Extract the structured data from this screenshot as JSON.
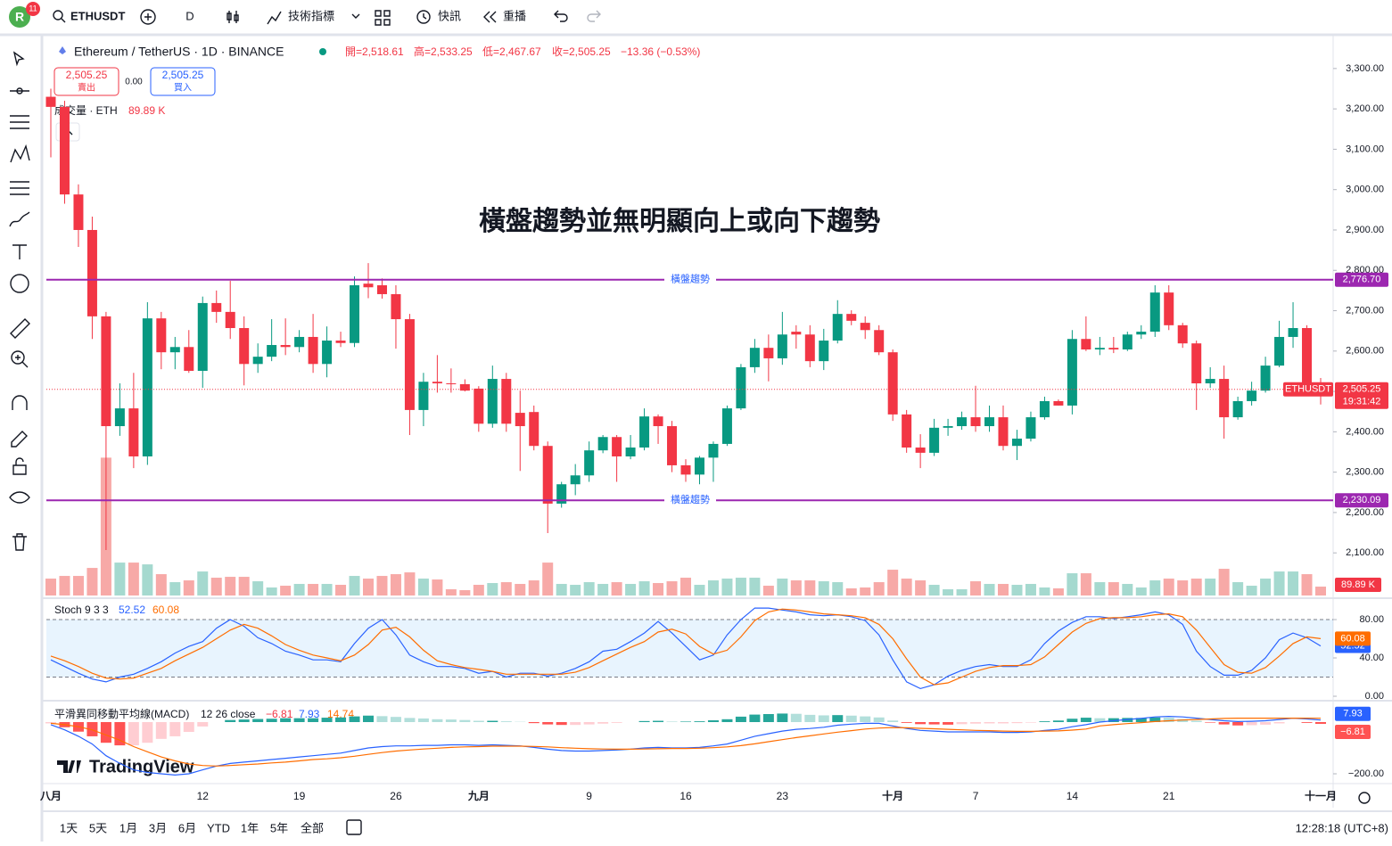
{
  "toolbar": {
    "avatar": "R",
    "badge": "11",
    "symbol": "ETHUSDT",
    "interval": "D",
    "indicators": "技術指標",
    "alerts": "快訊",
    "replay": "重播"
  },
  "legend": {
    "title": "Ethereum / TetherUS · 1D · BINANCE",
    "open": "開=2,518.61",
    "high": "高=2,533.25",
    "low": "低=2,467.67",
    "close": "收=2,505.25",
    "change": "−13.36 (−0.53%)"
  },
  "trade": {
    "sell_price": "2,505.25",
    "sell": "賣出",
    "spread": "0.00",
    "buy_price": "2,505.25",
    "buy": "買入"
  },
  "brand": "TradingView",
  "chart_data": [
    {
      "type": "candlestick",
      "annotation": "橫盤趨勢並無明顯向上或向下趨勢",
      "categories": [
        "八月",
        null,
        null,
        null,
        null,
        null,
        null,
        null,
        null,
        null,
        null,
        "12",
        null,
        null,
        null,
        null,
        null,
        null,
        "19",
        null,
        null,
        null,
        null,
        null,
        null,
        "26",
        null,
        null,
        null,
        null,
        null,
        "九月",
        null,
        null,
        null,
        null,
        null,
        null,
        null,
        "9",
        null,
        null,
        null,
        null,
        null,
        null,
        "16",
        null,
        null,
        null,
        null,
        null,
        null,
        "23",
        null,
        null,
        null,
        null,
        null,
        null,
        null,
        "十月",
        null,
        null,
        null,
        null,
        null,
        "7",
        null,
        null,
        null,
        null,
        null,
        null,
        "14",
        null,
        null,
        null,
        null,
        null,
        null,
        "21",
        null,
        null,
        null,
        null,
        null,
        null,
        null,
        null,
        null,
        null,
        "十一月"
      ],
      "open": [
        3230,
        3205,
        2988,
        2900,
        2686,
        2414,
        2458,
        2339,
        2681,
        2597,
        2610,
        2551,
        2719,
        2697,
        2657,
        2568,
        2586,
        2615,
        2610,
        2635,
        2568,
        2626,
        2620,
        2767,
        2763,
        2741,
        2679,
        2454,
        2524,
        2520,
        2518,
        2507,
        2420,
        2531,
        2447,
        2449,
        2365,
        2222,
        2270,
        2292,
        2354,
        2387,
        2339,
        2361,
        2438,
        2414,
        2317,
        2294,
        2336,
        2370,
        2458,
        2560,
        2608,
        2582,
        2648,
        2641,
        2575,
        2626,
        2692,
        2670,
        2652,
        2597,
        2443,
        2361,
        2348,
        2410,
        2414,
        2436,
        2414,
        2436,
        2365,
        2383,
        2436,
        2476,
        2465,
        2630,
        2604,
        2608,
        2604,
        2641,
        2648,
        2745,
        2664,
        2619,
        2520,
        2531,
        2436,
        2476,
        2502,
        2564,
        2635,
        2657,
        2518.61
      ],
      "high": [
        3250,
        3220,
        3013,
        2933,
        2697,
        2520,
        2546,
        2721,
        2697,
        2635,
        2652,
        2735,
        2750,
        2774,
        2686,
        2619,
        2679,
        2681,
        2652,
        2692,
        2661,
        2648,
        2785,
        2818,
        2780,
        2763,
        2692,
        2546,
        2590,
        2557,
        2530,
        2513,
        2564,
        2546,
        2502,
        2465,
        2376,
        2276,
        2320,
        2376,
        2392,
        2392,
        2392,
        2458,
        2443,
        2427,
        2332,
        2340,
        2376,
        2465,
        2568,
        2630,
        2641,
        2697,
        2664,
        2664,
        2655,
        2726,
        2701,
        2686,
        2664,
        2604,
        2454,
        2394,
        2432,
        2432,
        2450,
        2514,
        2465,
        2465,
        2405,
        2450,
        2487,
        2480,
        2652,
        2686,
        2635,
        2635,
        2648,
        2664,
        2763,
        2763,
        2670,
        2626,
        2560,
        2564,
        2487,
        2524,
        2586,
        2675,
        2721,
        2664,
        2533.25
      ],
      "low": [
        3080,
        2965,
        2858,
        2630,
        2107,
        2390,
        2310,
        2318,
        2555,
        2555,
        2546,
        2509,
        2670,
        2630,
        2515,
        2546,
        2575,
        2590,
        2597,
        2546,
        2535,
        2610,
        2610,
        2731,
        2730,
        2606,
        2392,
        2414,
        2497,
        2497,
        2500,
        2400,
        2410,
        2400,
        2303,
        2354,
        2149,
        2212,
        2243,
        2276,
        2347,
        2276,
        2332,
        2354,
        2370,
        2300,
        2276,
        2270,
        2276,
        2365,
        2454,
        2546,
        2525,
        2566,
        2606,
        2560,
        2553,
        2619,
        2664,
        2630,
        2590,
        2427,
        2348,
        2310,
        2340,
        2390,
        2405,
        2400,
        2400,
        2354,
        2330,
        2376,
        2430,
        2465,
        2443,
        2600,
        2590,
        2595,
        2600,
        2630,
        2635,
        2652,
        2608,
        2454,
        2509,
        2383,
        2430,
        2465,
        2497,
        2560,
        2608,
        2500,
        2467.67
      ],
      "close": [
        3205,
        2988,
        2900,
        2686,
        2414,
        2458,
        2339,
        2681,
        2597,
        2610,
        2551,
        2719,
        2697,
        2657,
        2568,
        2586,
        2615,
        2610,
        2635,
        2568,
        2626,
        2620,
        2763,
        2758,
        2741,
        2679,
        2454,
        2524,
        2520,
        2518,
        2502,
        2420,
        2531,
        2420,
        2414,
        2365,
        2222,
        2270,
        2292,
        2354,
        2387,
        2339,
        2361,
        2438,
        2414,
        2317,
        2294,
        2336,
        2370,
        2458,
        2560,
        2608,
        2582,
        2641,
        2641,
        2575,
        2626,
        2692,
        2675,
        2652,
        2597,
        2443,
        2361,
        2348,
        2410,
        2414,
        2436,
        2414,
        2436,
        2365,
        2383,
        2436,
        2476,
        2465,
        2630,
        2604,
        2608,
        2604,
        2641,
        2648,
        2745,
        2664,
        2619,
        2520,
        2531,
        2436,
        2476,
        2502,
        2564,
        2635,
        2657,
        2515,
        2505.25
      ],
      "up_color": "#089981",
      "down_color": "#f23645",
      "ylim": [
        1990,
        3377
      ],
      "yticks": [
        {
          "value": 2100,
          "label": "2,100.00"
        },
        {
          "value": 2200,
          "label": "2,200.00"
        },
        {
          "value": 2300,
          "label": "2,300.00"
        },
        {
          "value": 2400,
          "label": "2,400.00"
        },
        {
          "value": 2500,
          "label": "2,500.00"
        },
        {
          "value": 2600,
          "label": "2,600.00"
        },
        {
          "value": 2700,
          "label": "2,700.00"
        },
        {
          "value": 2800,
          "label": "2,800.00"
        },
        {
          "value": 2900,
          "label": "2,900.00"
        },
        {
          "value": 3000,
          "label": "3,000.00"
        },
        {
          "value": 3100,
          "label": "3,100.00"
        },
        {
          "value": 3200,
          "label": "3,200.00"
        },
        {
          "value": 3300,
          "label": "3,300.00"
        }
      ],
      "volume": {
        "name": "成交量 · ETH",
        "last_label": "89.89 K",
        "vlim": [
          0,
          5647
        ],
        "up_color": "#a5d9cf",
        "down_color": "#f7a9a7",
        "values": [
          171,
          198,
          198,
          279,
          1395,
          333,
          333,
          315,
          216,
          135,
          153,
          243,
          180,
          189,
          189,
          144,
          81,
          99,
          117,
          117,
          117,
          108,
          198,
          171,
          198,
          216,
          234,
          171,
          162,
          63,
          54,
          108,
          126,
          135,
          117,
          153,
          333,
          117,
          108,
          135,
          117,
          135,
          117,
          144,
          126,
          144,
          180,
          108,
          153,
          171,
          180,
          180,
          99,
          171,
          153,
          153,
          144,
          135,
          72,
          81,
          135,
          261,
          171,
          153,
          108,
          63,
          63,
          144,
          117,
          117,
          108,
          117,
          81,
          72,
          225,
          225,
          135,
          135,
          117,
          81,
          153,
          171,
          153,
          171,
          171,
          270,
          135,
          99,
          171,
          243,
          243,
          216,
          89.89
        ]
      },
      "hlines": [
        {
          "value": 2776.7,
          "label": "2,776.70",
          "text": "橫盤趨勢"
        },
        {
          "value": 2230.09,
          "label": "2,230.09",
          "text": "橫盤趨勢"
        }
      ],
      "hline_color": "#9c27b0",
      "last": {
        "label": "2,505.25",
        "symbol": "ETHUSDT",
        "countdown": "19:31:42"
      }
    },
    {
      "type": "line",
      "name": "Stoch 9 3 3",
      "ylim": [
        -3.7,
        101.4
      ],
      "band": [
        20,
        80
      ],
      "yticks": [
        {
          "value": 80,
          "label": "80.00"
        },
        {
          "value": 40,
          "label": "40.00"
        },
        {
          "value": 0,
          "label": "0.00"
        }
      ],
      "series": [
        {
          "color": "#2962ff",
          "last_label": "52.52",
          "values": [
            38,
            31,
            24,
            18,
            15,
            20,
            23,
            29,
            36,
            45,
            52,
            57,
            71,
            80,
            73,
            61,
            55,
            47,
            43,
            38,
            38,
            36,
            55,
            71,
            80,
            64,
            43,
            36,
            31,
            31,
            29,
            24,
            26,
            20,
            24,
            24,
            21,
            24,
            29,
            36,
            47,
            49,
            57,
            66,
            78,
            66,
            52,
            38,
            43,
            64,
            80,
            92,
            92,
            90,
            88,
            85,
            84,
            85,
            83,
            79,
            64,
            38,
            15,
            8,
            12,
            21,
            27,
            31,
            33,
            31,
            31,
            38,
            55,
            68,
            77,
            83,
            83,
            81,
            83,
            85,
            88,
            85,
            75,
            47,
            31,
            22,
            22,
            27,
            40,
            59,
            66,
            61,
            52.52
          ]
        },
        {
          "color": "#ff6d00",
          "last_label": "60.08",
          "values": [
            42,
            37,
            31,
            24,
            19,
            18,
            19,
            24,
            29,
            37,
            44,
            51,
            60,
            69,
            75,
            71,
            63,
            54,
            48,
            43,
            40,
            37,
            43,
            54,
            69,
            72,
            62,
            48,
            37,
            33,
            30,
            28,
            26,
            23,
            23,
            23,
            23,
            23,
            25,
            30,
            37,
            44,
            51,
            57,
            67,
            70,
            65,
            52,
            44,
            48,
            62,
            79,
            88,
            91,
            90,
            88,
            86,
            85,
            84,
            82,
            75,
            60,
            39,
            20,
            12,
            14,
            20,
            26,
            30,
            32,
            32,
            33,
            41,
            54,
            67,
            76,
            81,
            82,
            82,
            83,
            85,
            86,
            83,
            69,
            51,
            33,
            25,
            24,
            30,
            42,
            55,
            62,
            60.08
          ]
        }
      ]
    },
    {
      "type": "macd",
      "name": "平滑異同移動平均線(MACD)",
      "params": "12 26 close",
      "ylim": [
        -234.5,
        79.3
      ],
      "yticks": [
        {
          "value": -200,
          "label": "−200.00"
        }
      ],
      "hist_colors": [
        "#26a69a",
        "#b2dfdb",
        "#ffcdd2",
        "#ff5252"
      ],
      "histogram": {
        "last_label": "−6.81",
        "values": [
          -5,
          -20,
          -37,
          -55,
          -80,
          -90,
          -90,
          -80,
          -65,
          -55,
          -38,
          -17,
          0,
          8,
          10,
          12,
          13,
          15,
          15,
          15,
          17,
          18,
          22,
          25,
          23,
          20,
          16,
          14,
          11,
          10,
          8,
          5,
          5,
          3,
          1,
          -4,
          -9,
          -11,
          -11,
          -9,
          -6,
          -3,
          0,
          4,
          5,
          2,
          2,
          3,
          7,
          11,
          21,
          29,
          31,
          33,
          32,
          28,
          26,
          27,
          25,
          22,
          18,
          6,
          -3,
          -8,
          -9,
          -10,
          -8,
          -6,
          -5,
          -5,
          -4,
          -2,
          3,
          6,
          13,
          17,
          15,
          15,
          16,
          16,
          18,
          17,
          12,
          5,
          -2,
          -9,
          -13,
          -12,
          -10,
          -5,
          0,
          -3,
          -6.81
        ]
      },
      "series": [
        {
          "color": "#2962ff",
          "last_label": "7.93",
          "values": [
            -10,
            -30,
            -55,
            -85,
            -130,
            -160,
            -185,
            -195,
            -200,
            -205,
            -200,
            -185,
            -170,
            -160,
            -155,
            -150,
            -145,
            -140,
            -135,
            -130,
            -125,
            -120,
            -110,
            -100,
            -95,
            -92,
            -92,
            -90,
            -90,
            -88,
            -88,
            -90,
            -88,
            -90,
            -92,
            -98,
            -105,
            -110,
            -112,
            -112,
            -110,
            -108,
            -105,
            -100,
            -98,
            -100,
            -100,
            -98,
            -92,
            -85,
            -70,
            -55,
            -45,
            -35,
            -28,
            -25,
            -20,
            -12,
            -8,
            -5,
            -5,
            -15,
            -25,
            -32,
            -35,
            -38,
            -38,
            -38,
            -38,
            -40,
            -40,
            -38,
            -32,
            -28,
            -18,
            -10,
            0,
            5,
            10,
            14,
            20,
            22,
            20,
            15,
            10,
            5,
            2,
            3,
            5,
            10,
            15,
            12,
            7.93
          ]
        },
        {
          "color": "#ff6d00",
          "last_label": "14.74",
          "values": [
            -5,
            -10,
            -18,
            -30,
            -50,
            -70,
            -95,
            -115,
            -135,
            -150,
            -162,
            -168,
            -170,
            -168,
            -165,
            -162,
            -158,
            -155,
            -150,
            -145,
            -142,
            -138,
            -132,
            -125,
            -118,
            -112,
            -108,
            -104,
            -101,
            -98,
            -96,
            -95,
            -93,
            -93,
            -93,
            -94,
            -96,
            -99,
            -101,
            -103,
            -104,
            -105,
            -105,
            -104,
            -103,
            -102,
            -102,
            -101,
            -99,
            -96,
            -91,
            -84,
            -76,
            -68,
            -60,
            -53,
            -46,
            -39,
            -33,
            -27,
            -23,
            -21,
            -22,
            -24,
            -26,
            -28,
            -30,
            -32,
            -33,
            -35,
            -36,
            -36,
            -35,
            -34,
            -31,
            -27,
            -15,
            -10,
            -6,
            -2,
            2,
            5,
            8,
            10,
            12,
            14,
            15,
            15,
            15,
            15,
            15,
            15,
            14.74
          ]
        }
      ]
    }
  ],
  "footer": {
    "ranges": [
      "1天",
      "5天",
      "1月",
      "3月",
      "6月",
      "YTD",
      "1年",
      "5年",
      "全部"
    ],
    "clock": "12:28:18 (UTC+8)"
  }
}
